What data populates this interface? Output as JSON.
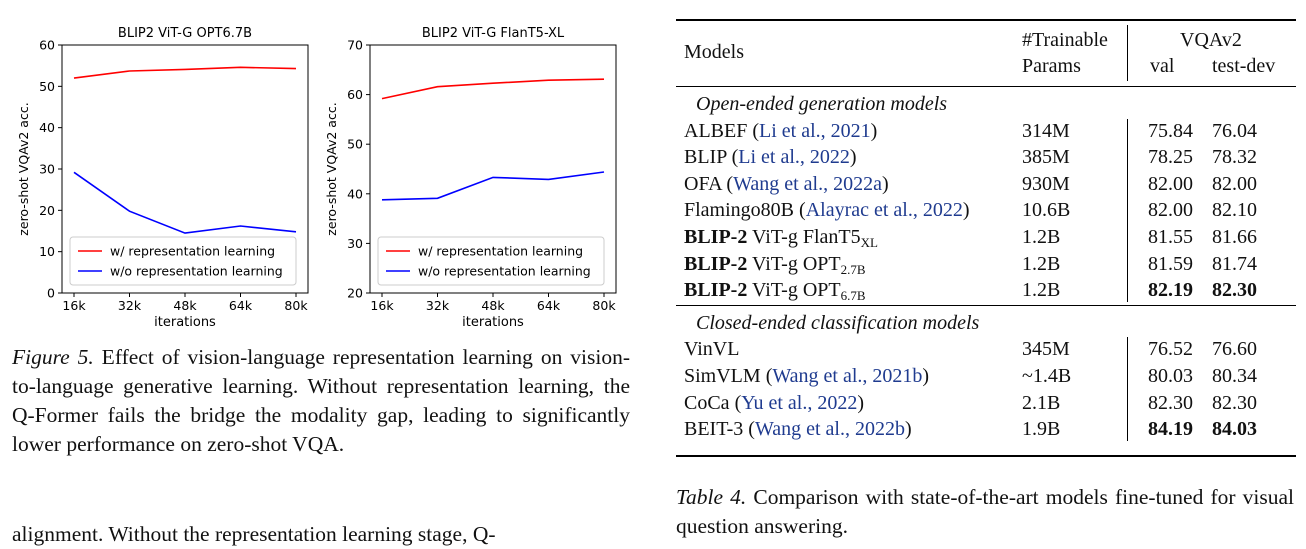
{
  "charts": [
    {
      "type": "line",
      "title": "BLIP2 ViT-G OPT6.7B",
      "xlabel": "iterations",
      "ylabel": "zero-shot VQAv2 acc.",
      "categories": [
        "16k",
        "32k",
        "48k",
        "64k",
        "80k"
      ],
      "ylim": [
        0,
        60
      ],
      "yticks": [
        "0",
        "10",
        "20",
        "30",
        "40",
        "50",
        "60"
      ],
      "legend_placement": "lower-right",
      "series": [
        {
          "name": "w/ representation learning",
          "color": "#ff0000",
          "values": [
            52.0,
            53.7,
            54.1,
            54.6,
            54.3
          ]
        },
        {
          "name": "w/o representation learning",
          "color": "#0000ff",
          "values": [
            29.2,
            19.8,
            14.5,
            16.2,
            14.8
          ]
        }
      ]
    },
    {
      "type": "line",
      "title": "BLIP2 ViT-G FlanT5-XL",
      "xlabel": "iterations",
      "ylabel": "zero-shot VQAv2 acc.",
      "categories": [
        "16k",
        "32k",
        "48k",
        "64k",
        "80k"
      ],
      "ylim": [
        20,
        70
      ],
      "yticks": [
        "20",
        "30",
        "40",
        "50",
        "60",
        "70"
      ],
      "legend_placement": "lower-right",
      "series": [
        {
          "name": "w/ representation learning",
          "color": "#ff0000",
          "values": [
            59.2,
            61.6,
            62.3,
            62.9,
            63.1
          ]
        },
        {
          "name": "w/o representation learning",
          "color": "#0000ff",
          "values": [
            38.8,
            39.1,
            43.3,
            42.9,
            44.4
          ]
        }
      ]
    }
  ],
  "figure_caption": {
    "label": "Figure 5.",
    "text": " Effect of vision-language representation learning on vision-to-language generative learning. Without representation learning, the Q-Former fails the bridge the modality gap, leading to significantly lower performance on zero-shot VQA."
  },
  "body_fragment": "alignment. Without the representation learning stage, Q-",
  "table": {
    "headers": {
      "models": "Models",
      "params_line1": "#Trainable",
      "params_line2": "Params",
      "vqa": "VQAv2",
      "val": "val",
      "testdev": "test-dev"
    },
    "sections": [
      {
        "title": "Open-ended generation models",
        "rows": [
          {
            "bold": "",
            "name": "ALBEF ",
            "cite": "Li et al., 2021",
            "sub": "",
            "params": "314M",
            "val": "75.84",
            "test": "76.04",
            "val_bold": false,
            "test_bold": false
          },
          {
            "bold": "",
            "name": "BLIP ",
            "cite": "Li et al., 2022",
            "sub": "",
            "params": "385M",
            "val": "78.25",
            "test": "78.32",
            "val_bold": false,
            "test_bold": false
          },
          {
            "bold": "",
            "name": "OFA ",
            "cite": "Wang et al., 2022a",
            "sub": "",
            "params": "930M",
            "val": "82.00",
            "test": "82.00",
            "val_bold": false,
            "test_bold": false
          },
          {
            "bold": "",
            "name": "Flamingo80B ",
            "cite": "Alayrac et al., 2022",
            "sub": "",
            "params": "10.6B",
            "val": "82.00",
            "test": "82.10",
            "val_bold": false,
            "test_bold": false
          },
          {
            "bold": "BLIP-2",
            "name": " ViT-g FlanT5",
            "cite": "",
            "sub": "XL",
            "params": "1.2B",
            "val": "81.55",
            "test": "81.66",
            "val_bold": false,
            "test_bold": false
          },
          {
            "bold": "BLIP-2",
            "name": " ViT-g OPT",
            "cite": "",
            "sub": "2.7B",
            "params": "1.2B",
            "val": "81.59",
            "test": "81.74",
            "val_bold": false,
            "test_bold": false
          },
          {
            "bold": "BLIP-2",
            "name": " ViT-g OPT",
            "cite": "",
            "sub": "6.7B",
            "params": "1.2B",
            "val": "82.19",
            "test": "82.30",
            "val_bold": true,
            "test_bold": true
          }
        ]
      },
      {
        "title": "Closed-ended classification models",
        "rows": [
          {
            "bold": "",
            "name": "VinVL",
            "cite": "",
            "sub": "",
            "params": "345M",
            "val": "76.52",
            "test": "76.60",
            "val_bold": false,
            "test_bold": false
          },
          {
            "bold": "",
            "name": "SimVLM ",
            "cite": "Wang et al., 2021b",
            "sub": "",
            "params": "~1.4B",
            "val": "80.03",
            "test": "80.34",
            "val_bold": false,
            "test_bold": false
          },
          {
            "bold": "",
            "name": "CoCa ",
            "cite": "Yu et al., 2022",
            "sub": "",
            "params": "2.1B",
            "val": "82.30",
            "test": "82.30",
            "val_bold": false,
            "test_bold": false
          },
          {
            "bold": "",
            "name": "BEIT-3 ",
            "cite": "Wang et al., 2022b",
            "sub": "",
            "params": "1.9B",
            "val": "84.19",
            "test": "84.03",
            "val_bold": true,
            "test_bold": true
          }
        ]
      }
    ]
  },
  "table_caption": {
    "label": "Table 4.",
    "text": " Comparison with state-of-the-art models fine-tuned for visual question answering."
  }
}
